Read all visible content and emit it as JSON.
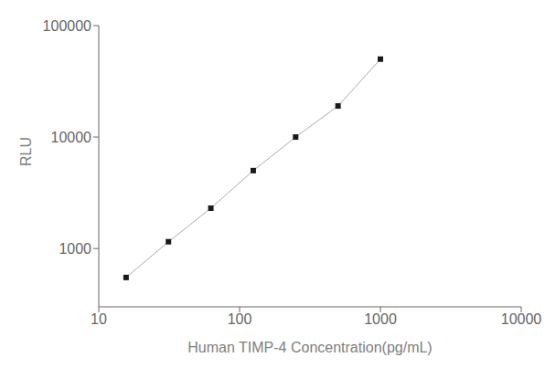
{
  "chart_data": {
    "type": "line",
    "x": [
      15.625,
      31.25,
      62.5,
      125,
      250,
      500,
      1000
    ],
    "values": [
      550,
      1150,
      2300,
      5000,
      10000,
      19000,
      50000
    ],
    "xlabel": "Human TIMP-4 Concentration(pg/mL)",
    "ylabel": "RLU",
    "xlim": [
      10,
      10000
    ],
    "ylim": [
      300,
      100000
    ],
    "xticks": [
      10,
      100,
      1000,
      10000
    ],
    "yticks": [
      1000,
      10000,
      100000
    ],
    "log": true,
    "grid": false,
    "color": "#aaaaaa",
    "colors": [
      "#1a1a1a",
      "#1a1a1a",
      "#1a1a1a",
      "#1a1a1a",
      "#1a1a1a",
      "#1a1a1a",
      "#1a1a1a"
    ],
    "marker": "square"
  }
}
